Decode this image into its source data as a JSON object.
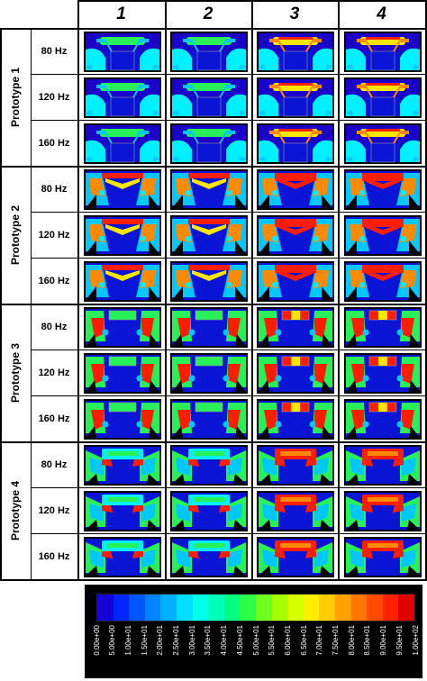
{
  "columns": [
    "1",
    "2",
    "3",
    "4"
  ],
  "prototypes": [
    {
      "label": "Prototype 1",
      "frequencies": [
        "80 Hz",
        "120 Hz",
        "160 Hz"
      ]
    },
    {
      "label": "Prototype 2",
      "frequencies": [
        "80 Hz",
        "120 Hz",
        "160 Hz"
      ]
    },
    {
      "label": "Prototype 3",
      "frequencies": [
        "80 Hz",
        "120 Hz",
        "160 Hz"
      ]
    },
    {
      "label": "Prototype 4",
      "frequencies": [
        "80 Hz",
        "120 Hz",
        "160 Hz"
      ]
    }
  ],
  "colorbar": {
    "colors": [
      "#1500d8",
      "#0026ff",
      "#0057ff",
      "#0083ff",
      "#00b0ff",
      "#00ddff",
      "#00ffe8",
      "#00ffb8",
      "#00ff80",
      "#2bff4a",
      "#6cff20",
      "#a8ff00",
      "#d8ff00",
      "#fff000",
      "#ffcc00",
      "#ffa200",
      "#ff7600",
      "#ff4a00",
      "#ff2000",
      "#e00000"
    ],
    "ticks": [
      "0.00e+00",
      "5.00e+00",
      "1.00e+01",
      "1.50e+01",
      "2.00e+01",
      "2.50e+01",
      "3.00e+01",
      "3.50e+01",
      "4.00e+01",
      "4.50e+01",
      "5.00e+01",
      "5.50e+01",
      "6.00e+01",
      "6.50e+01",
      "7.00e+01",
      "7.50e+01",
      "8.00e+01",
      "8.50e+01",
      "9.00e+01",
      "9.50e+01",
      "1.00e+02"
    ]
  },
  "palette": {
    "background": "#000000",
    "field": "#0a14d4",
    "deep": "#1a00c8",
    "cyan": "#00c8ff",
    "aqua": "#00f0ff",
    "green": "#28f058",
    "lime": "#a8ff00",
    "yellow": "#ffe600",
    "orange": "#ff8a00",
    "red": "#ff1e00",
    "darkred": "#d00000",
    "gray": "#9a9a9a"
  }
}
